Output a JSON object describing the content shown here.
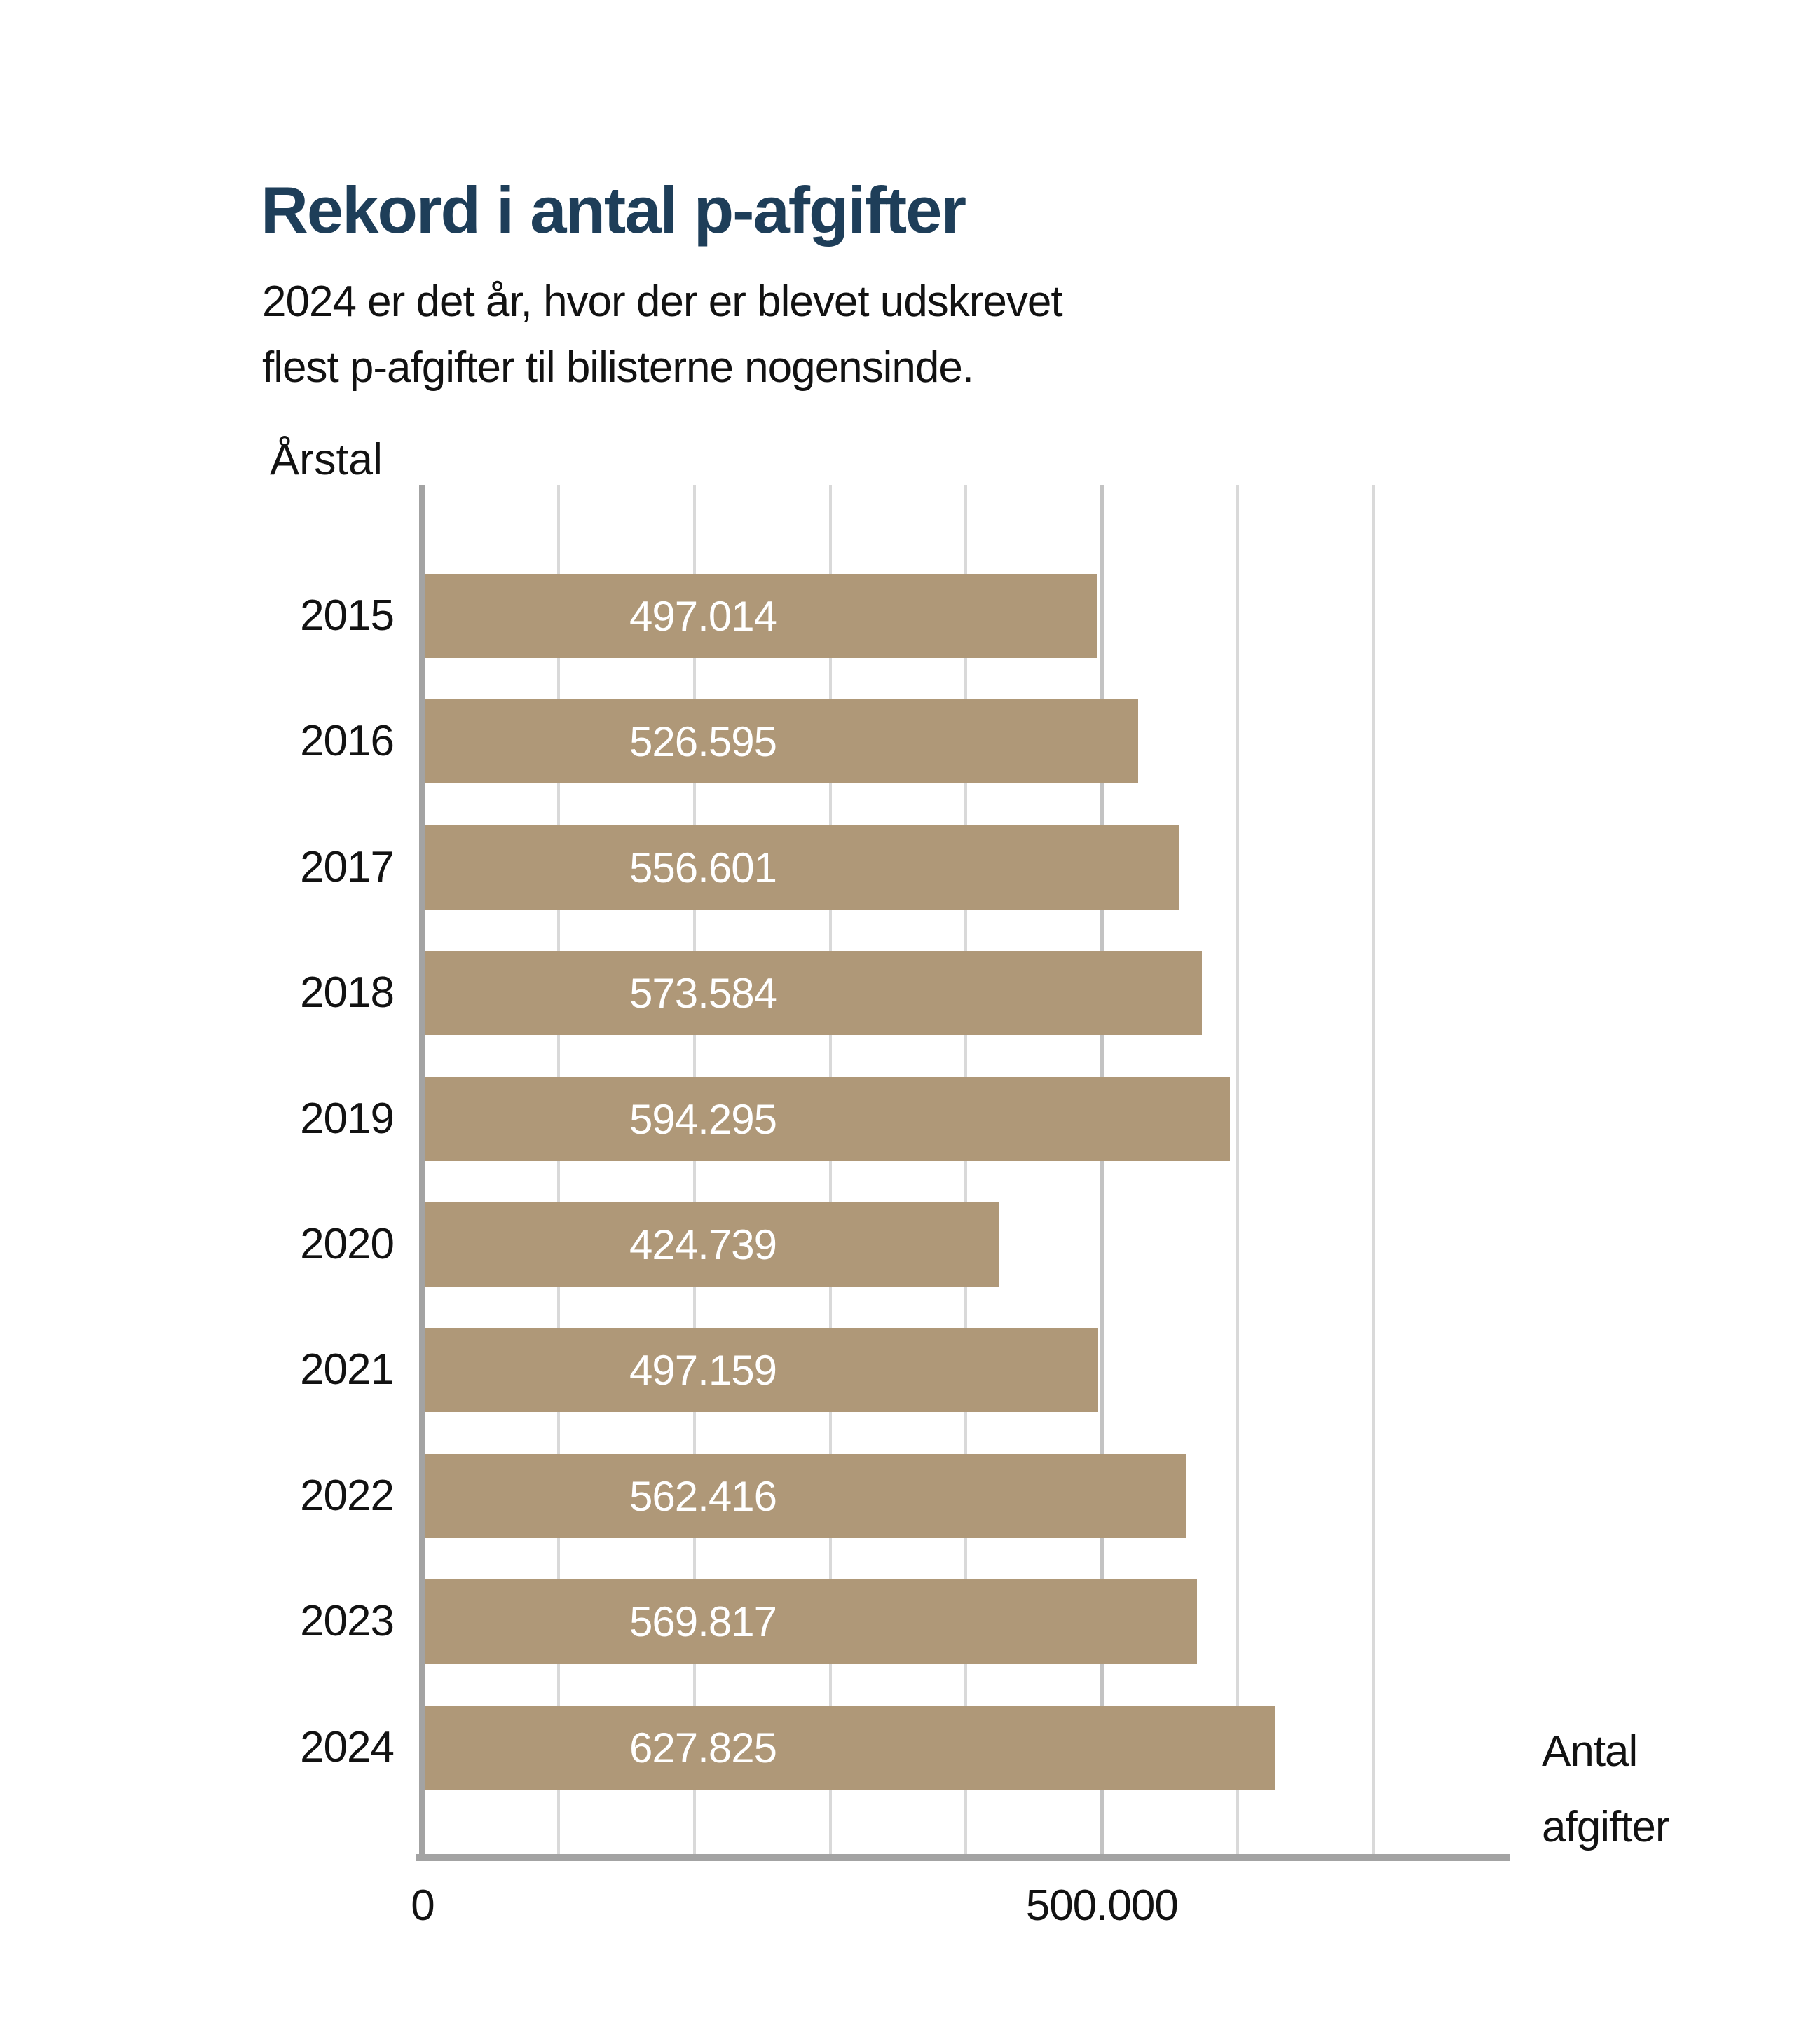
{
  "chart_data": {
    "type": "bar",
    "orientation": "horizontal",
    "title": "Rekord i antal p-afgifter",
    "subtitle_lines": [
      "2024 er det år, hvor der er blevet udskrevet",
      "flest p-afgifter til bilisterne nogensinde."
    ],
    "ylabel": "Årstal",
    "xlabel": "Antal afgifter",
    "categories": [
      "2015",
      "2016",
      "2017",
      "2018",
      "2019",
      "2020",
      "2021",
      "2022",
      "2023",
      "2024"
    ],
    "values": [
      497014,
      526595,
      556601,
      573584,
      594295,
      424739,
      497159,
      562416,
      569817,
      627825
    ],
    "value_labels": [
      "497.014",
      "526.595",
      "556.601",
      "573.584",
      "594.295",
      "424.739",
      "497.159",
      "562.416",
      "569.817",
      "627.825"
    ],
    "xlim": [
      0,
      700000
    ],
    "xticks": [
      {
        "value": 0,
        "label": "0"
      },
      {
        "value": 500000,
        "label": "500.000"
      }
    ],
    "gridline_interval": 100000,
    "emphasized_gridline": 500000,
    "grid": "vertical",
    "legend": "none",
    "colors": {
      "bar": "#af9878",
      "title": "#1e3e59",
      "text": "#121212",
      "value_text": "#ffffff",
      "axis": "#a3a3a3",
      "gridline": "#d9d9d9",
      "gridline_emphasis": "#c3c3c3",
      "background": "#ffffff"
    }
  }
}
